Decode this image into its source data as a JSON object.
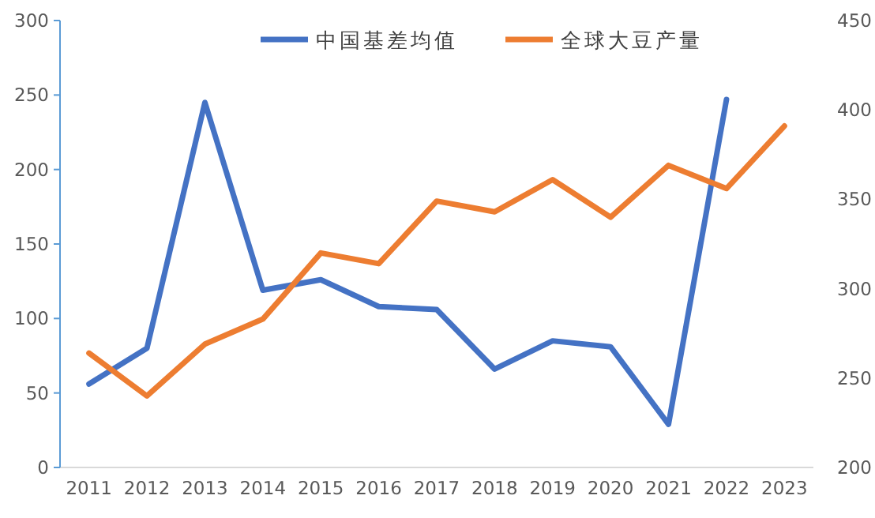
{
  "chart_data": {
    "type": "line",
    "categories": [
      "2011",
      "2012",
      "2013",
      "2014",
      "2015",
      "2016",
      "2017",
      "2018",
      "2019",
      "2020",
      "2021",
      "2022",
      "2023"
    ],
    "series": [
      {
        "name": "中国基差均值",
        "color": "#4472c4",
        "values": [
          56,
          80,
          245,
          119,
          126,
          108,
          106,
          66,
          85,
          81,
          29,
          247,
          null
        ]
      },
      {
        "name": "全球大豆产量",
        "color": "#ed7d31",
        "axis": "y2",
        "values": [
          264,
          240,
          269,
          283,
          320,
          314,
          349,
          343,
          361,
          340,
          369,
          356,
          391
        ]
      }
    ],
    "ylim": [
      0,
      300
    ],
    "yticks": [
      0,
      50,
      100,
      150,
      200,
      250,
      300
    ],
    "y2lim": [
      200,
      450
    ],
    "y2ticks": [
      200,
      250,
      300,
      350,
      400,
      450
    ],
    "grid": false,
    "legend": "top",
    "marker": "none",
    "line_style": "solid"
  }
}
